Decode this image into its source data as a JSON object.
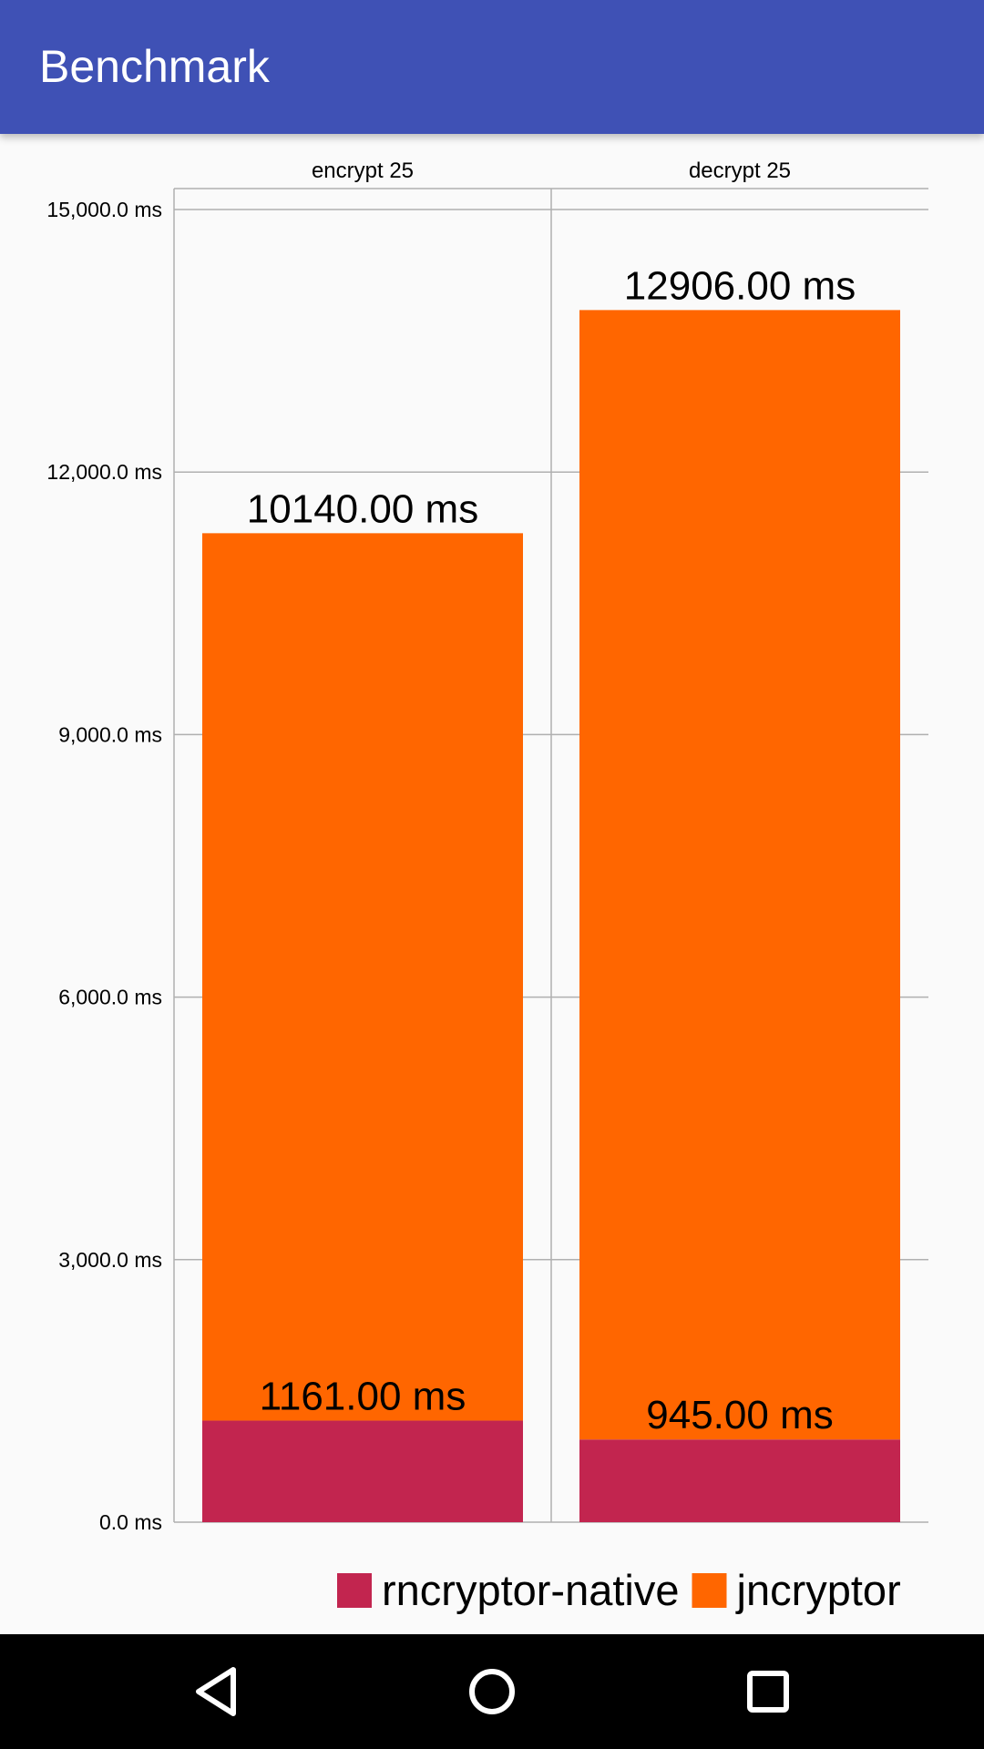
{
  "app": {
    "title": "Benchmark"
  },
  "colors": {
    "appbar": "#3f51b5",
    "background": "#fafafa",
    "rncryptor_native": "#c2254f",
    "jncryptor": "#ff6600",
    "grid": "#b0b0b0"
  },
  "chart_data": {
    "type": "bar",
    "stacked": true,
    "title": "",
    "xlabel": "",
    "ylabel": "",
    "categories": [
      "encrypt 25",
      "decrypt 25"
    ],
    "category_position": "top",
    "series": [
      {
        "name": "rncryptor-native",
        "values": [
          1161.0,
          945.0
        ],
        "labels": [
          "1161.00 ms",
          "945.00 ms"
        ]
      },
      {
        "name": "jncryptor",
        "values": [
          10140.0,
          12906.0
        ],
        "labels": [
          "10140.00 ms",
          "12906.00 ms"
        ]
      }
    ],
    "ylim": [
      0,
      15000
    ],
    "yticks": [
      0,
      3000,
      6000,
      9000,
      12000,
      15000
    ],
    "ytick_labels": [
      "0.0 ms",
      "3,000.0 ms",
      "6,000.0 ms",
      "9,000.0 ms",
      "12,000.0 ms",
      "15,000.0 ms"
    ],
    "grid": true,
    "legend_placement": "bottom-right"
  },
  "navbar": {
    "back": "back-icon",
    "home": "home-icon",
    "recents": "recents-icon"
  }
}
